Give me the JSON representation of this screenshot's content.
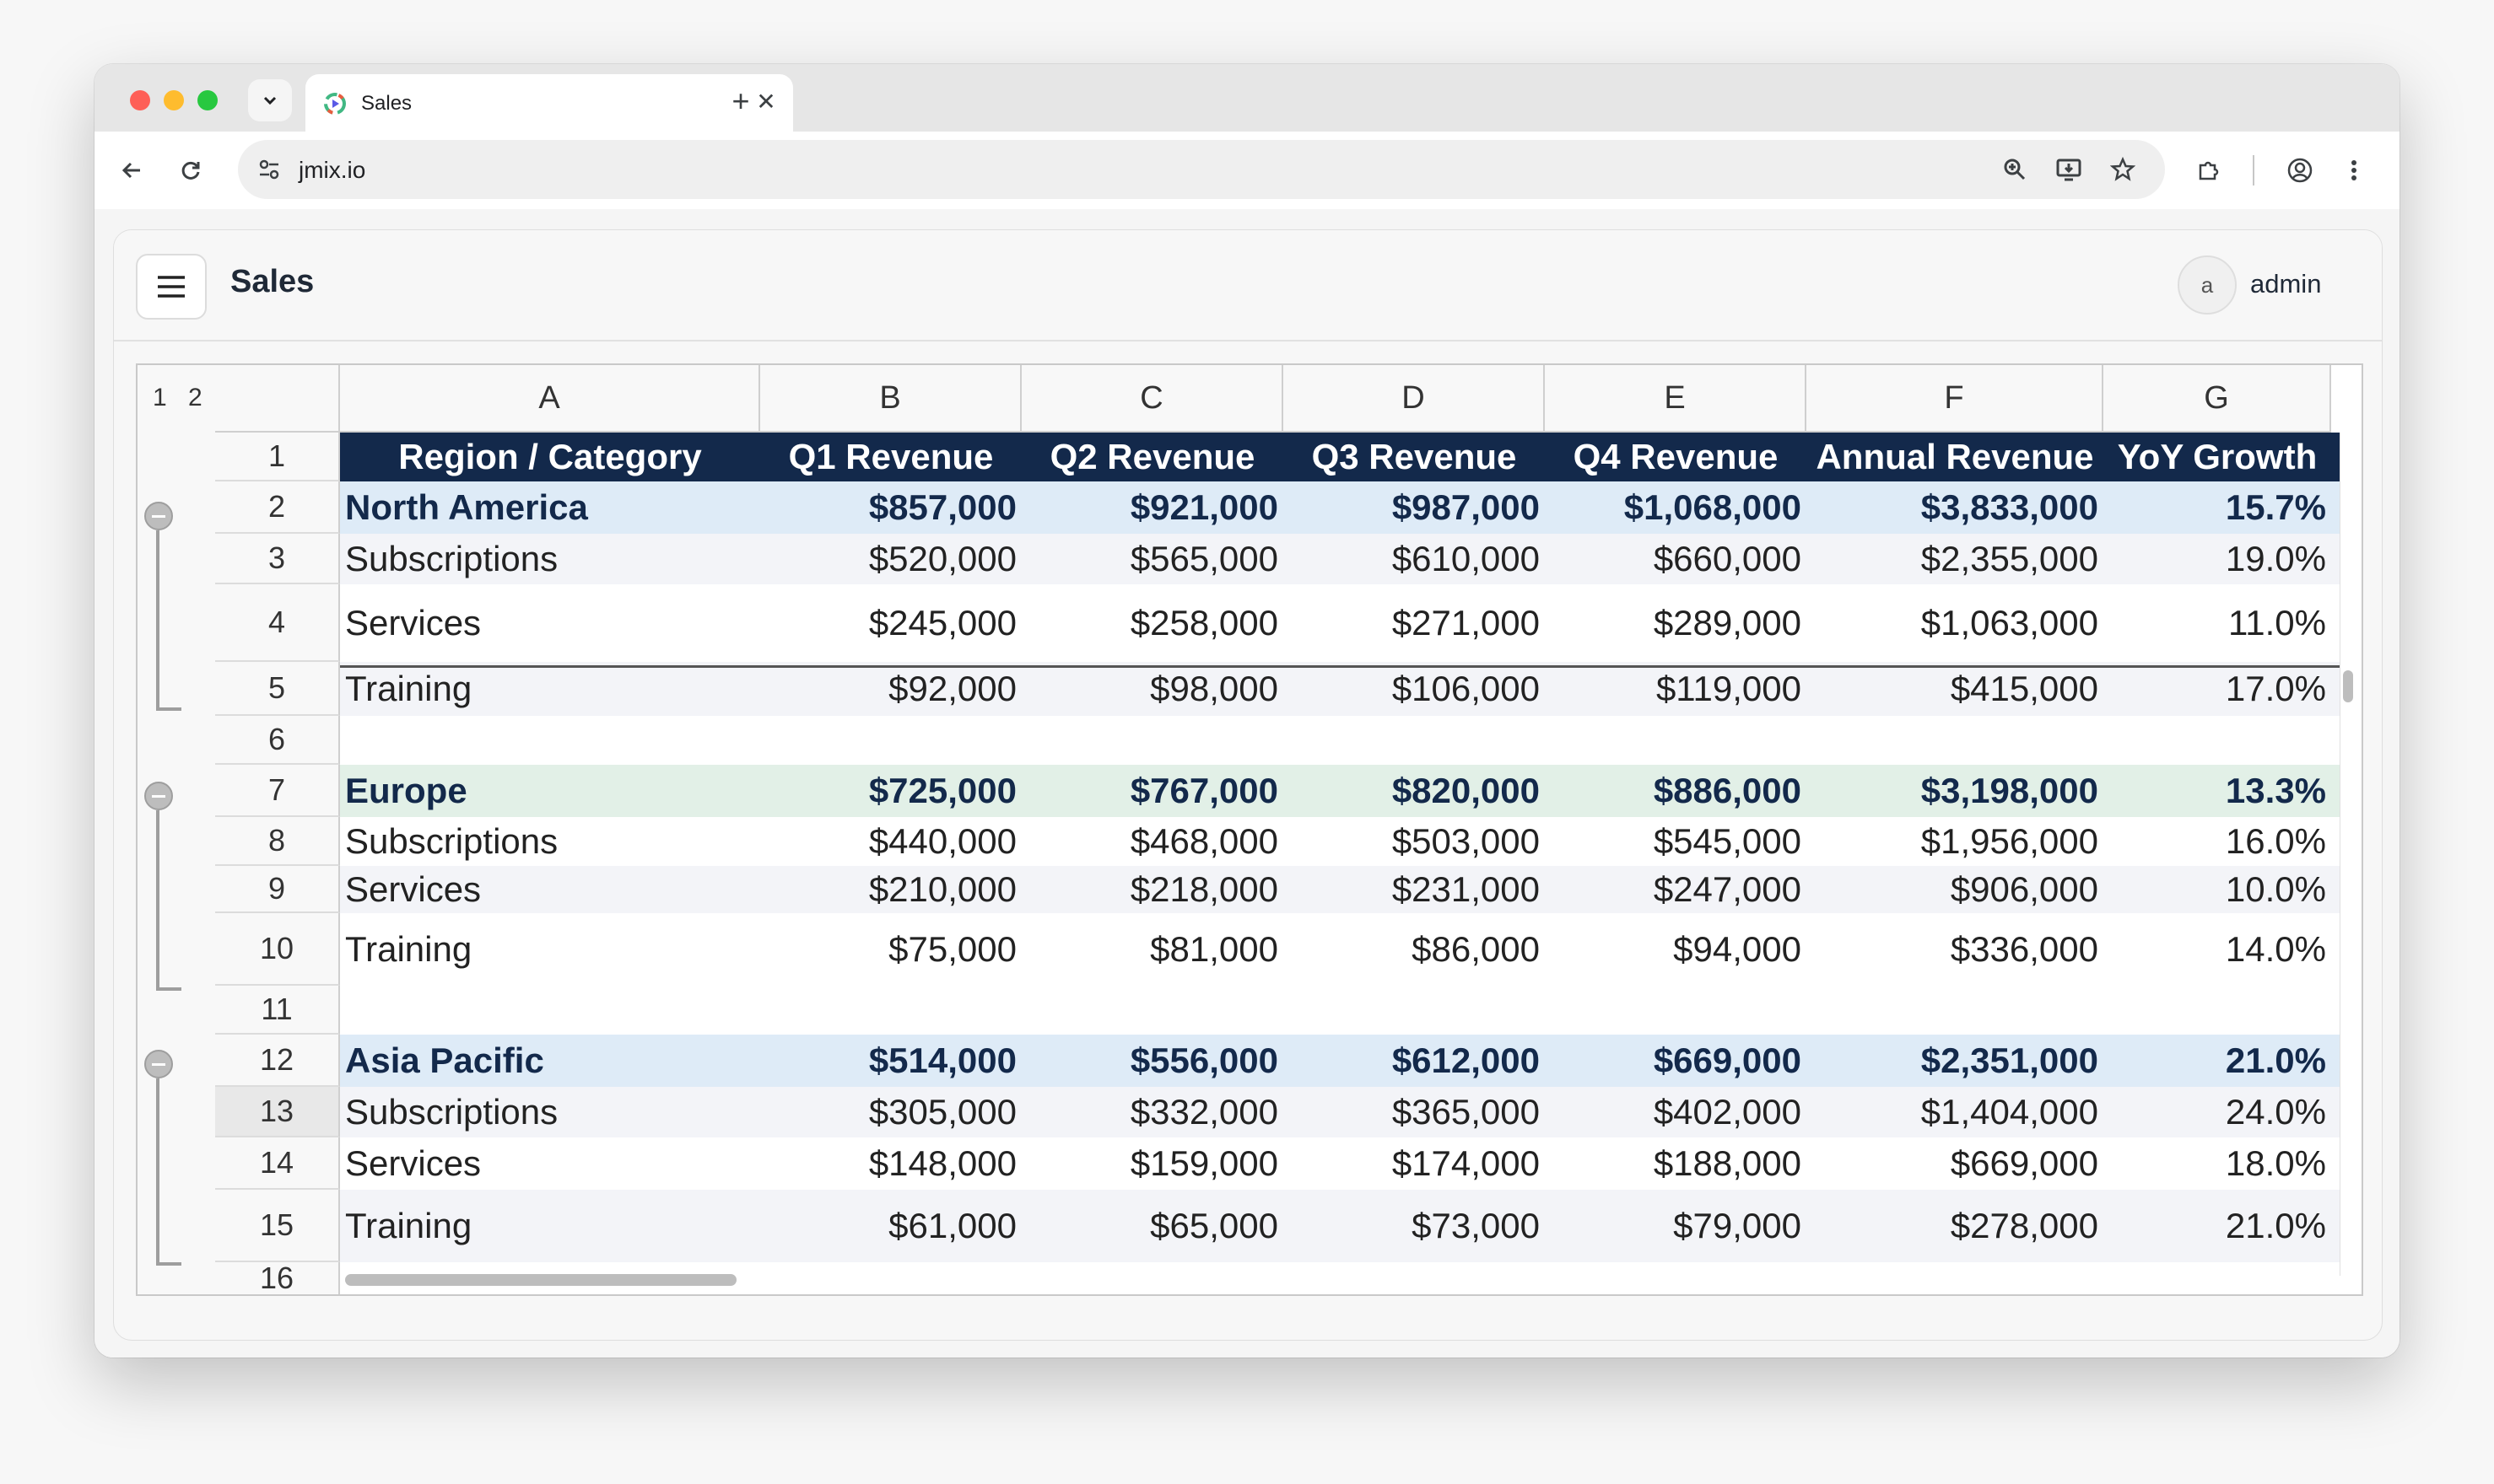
{
  "browser": {
    "tab_title": "Sales",
    "url": "jmix.io"
  },
  "app": {
    "title": "Sales",
    "avatar_initial": "a",
    "user": "admin"
  },
  "sheet": {
    "outline_levels": [
      "1",
      "2"
    ],
    "columns": [
      "A",
      "B",
      "C",
      "D",
      "E",
      "F",
      "G"
    ],
    "row_numbers": [
      "1",
      "2",
      "3",
      "4",
      "5",
      "6",
      "7",
      "8",
      "9",
      "10",
      "11",
      "12",
      "13",
      "14",
      "15",
      "16"
    ],
    "rows": [
      [
        "Region / Category",
        "Q1 Revenue",
        "Q2 Revenue",
        "Q3 Revenue",
        "Q4 Revenue",
        "Annual Revenue",
        "YoY Growth"
      ],
      [
        "North America",
        "$857,000",
        "$921,000",
        "$987,000",
        "$1,068,000",
        "$3,833,000",
        "15.7%"
      ],
      [
        "Subscriptions",
        "$520,000",
        "$565,000",
        "$610,000",
        "$660,000",
        "$2,355,000",
        "19.0%"
      ],
      [
        "Services",
        "$245,000",
        "$258,000",
        "$271,000",
        "$289,000",
        "$1,063,000",
        "11.0%"
      ],
      [
        "Training",
        "$92,000",
        "$98,000",
        "$106,000",
        "$119,000",
        "$415,000",
        "17.0%"
      ],
      [
        "",
        "",
        "",
        "",
        "",
        "",
        ""
      ],
      [
        "Europe",
        "$725,000",
        "$767,000",
        "$820,000",
        "$886,000",
        "$3,198,000",
        "13.3%"
      ],
      [
        "Subscriptions",
        "$440,000",
        "$468,000",
        "$503,000",
        "$545,000",
        "$1,956,000",
        "16.0%"
      ],
      [
        "Services",
        "$210,000",
        "$218,000",
        "$231,000",
        "$247,000",
        "$906,000",
        "10.0%"
      ],
      [
        "Training",
        "$75,000",
        "$81,000",
        "$86,000",
        "$94,000",
        "$336,000",
        "14.0%"
      ],
      [
        "",
        "",
        "",
        "",
        "",
        "",
        ""
      ],
      [
        "Asia Pacific",
        "$514,000",
        "$556,000",
        "$612,000",
        "$669,000",
        "$2,351,000",
        "21.0%"
      ],
      [
        "Subscriptions",
        "$305,000",
        "$332,000",
        "$365,000",
        "$402,000",
        "$1,404,000",
        "24.0%"
      ],
      [
        "Services",
        "$148,000",
        "$159,000",
        "$174,000",
        "$188,000",
        "$669,000",
        "18.0%"
      ],
      [
        "Training",
        "$61,000",
        "$65,000",
        "$73,000",
        "$79,000",
        "$278,000",
        "21.0%"
      ]
    ],
    "colors": {
      "header_band": "#13294b",
      "group_blue": "#deebf7",
      "group_green": "#e2f0e7"
    }
  }
}
